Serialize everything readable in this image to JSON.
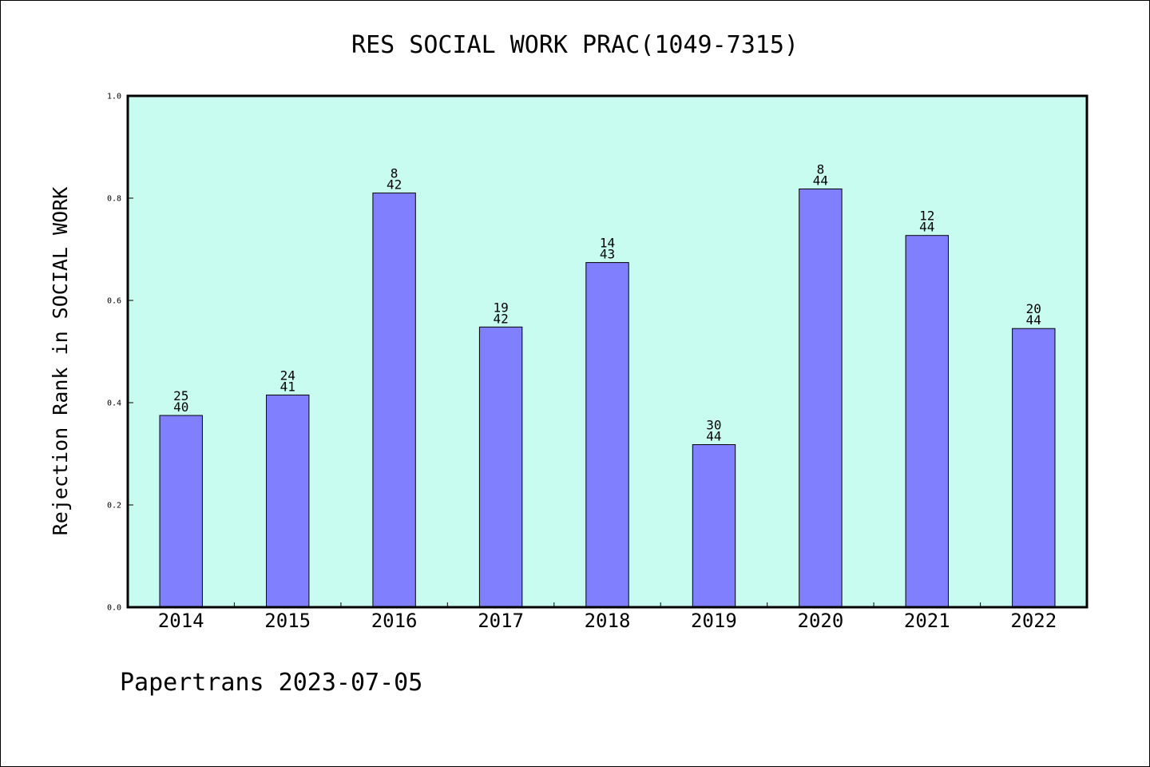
{
  "chart_data": {
    "type": "bar",
    "title": "RES SOCIAL WORK PRAC(1049-7315)",
    "ylabel": "Rejection Rank in SOCIAL WORK",
    "categories": [
      "2014",
      "2015",
      "2016",
      "2017",
      "2018",
      "2019",
      "2020",
      "2021",
      "2022"
    ],
    "values": [
      0.375,
      0.415,
      0.81,
      0.548,
      0.674,
      0.318,
      0.818,
      0.727,
      0.545
    ],
    "rank_labels": [
      "25",
      "24",
      "8",
      "19",
      "14",
      "30",
      "8",
      "12",
      "20"
    ],
    "total_labels": [
      "40",
      "41",
      "42",
      "42",
      "43",
      "44",
      "44",
      "44",
      "44"
    ],
    "ylim": [
      0,
      1.0
    ],
    "yticks": [
      "0.0",
      "0.2",
      "0.4",
      "0.6",
      "0.8",
      "1.0"
    ],
    "grid": false,
    "legend": false
  },
  "footer": {
    "text": "Papertrans 2023-07-05"
  },
  "colors": {
    "plot_background": "#c8fcf0",
    "bar": "#8080ff",
    "axis": "#000000"
  }
}
